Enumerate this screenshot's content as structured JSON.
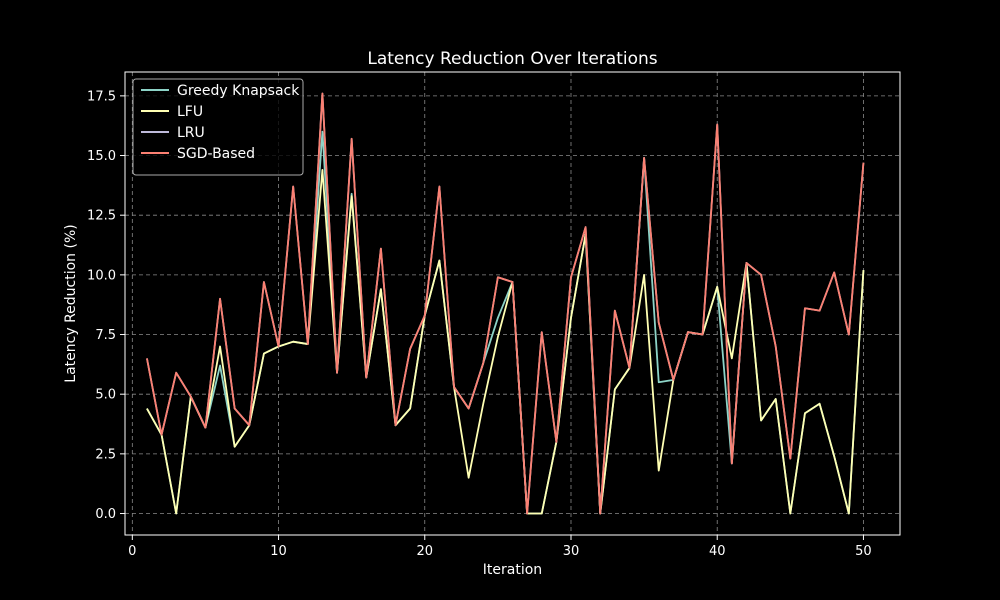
{
  "chart_data": {
    "type": "line",
    "title": "Latency Reduction Over Iterations",
    "xlabel": "Iteration",
    "ylabel": "Latency Reduction (%)",
    "xlim": [
      -0.5,
      52.5
    ],
    "ylim": [
      -0.9,
      18.5
    ],
    "xticks": [
      0,
      10,
      20,
      30,
      40,
      50
    ],
    "yticks": [
      0.0,
      2.5,
      5.0,
      7.5,
      10.0,
      12.5,
      15.0,
      17.5
    ],
    "xtick_labels": [
      "0",
      "10",
      "20",
      "30",
      "40",
      "50"
    ],
    "ytick_labels": [
      "0.0",
      "2.5",
      "5.0",
      "7.5",
      "10.0",
      "12.5",
      "15.0",
      "17.5"
    ],
    "grid": true,
    "legend_position": "top-left",
    "x": [
      1,
      2,
      3,
      4,
      5,
      6,
      7,
      8,
      9,
      10,
      11,
      12,
      13,
      14,
      15,
      16,
      17,
      18,
      19,
      20,
      21,
      22,
      23,
      24,
      25,
      26,
      27,
      28,
      29,
      30,
      31,
      32,
      33,
      34,
      35,
      36,
      37,
      38,
      39,
      40,
      41,
      42,
      43,
      44,
      45,
      46,
      47,
      48,
      49,
      50
    ],
    "series": [
      {
        "name": "Greedy Knapsack",
        "color": "#8dd3c7",
        "values": [
          4.4,
          3.3,
          0.0,
          4.9,
          3.6,
          6.2,
          2.8,
          3.7,
          6.7,
          7.0,
          7.2,
          7.1,
          16.0,
          5.9,
          13.4,
          5.7,
          9.4,
          3.7,
          4.4,
          8.3,
          10.6,
          5.3,
          4.4,
          6.3,
          8.2,
          9.7,
          0.0,
          0.0,
          3.0,
          8.2,
          11.7,
          0.0,
          5.2,
          6.1,
          14.9,
          5.5,
          5.6,
          7.6,
          7.5,
          9.5,
          2.1,
          10.5,
          3.9,
          4.8,
          0.0,
          4.2,
          4.6,
          2.4,
          0.0,
          10.2
        ]
      },
      {
        "name": "LFU",
        "color": "#ffffb3",
        "values": [
          4.4,
          3.3,
          0.0,
          4.9,
          3.6,
          7.0,
          2.8,
          3.7,
          6.7,
          7.0,
          7.2,
          7.1,
          14.4,
          5.9,
          13.3,
          5.7,
          9.4,
          3.7,
          4.4,
          8.3,
          10.6,
          5.3,
          1.5,
          4.6,
          7.4,
          9.7,
          0.0,
          0.0,
          3.0,
          8.2,
          11.7,
          0.0,
          5.2,
          6.1,
          10.0,
          1.8,
          5.6,
          7.6,
          7.5,
          9.5,
          6.5,
          10.5,
          3.9,
          4.8,
          0.0,
          4.2,
          4.6,
          2.4,
          0.0,
          10.2
        ]
      },
      {
        "name": "LRU",
        "color": "#bebada",
        "values": [
          6.5,
          3.3,
          5.9,
          4.9,
          3.6,
          9.0,
          4.4,
          3.7,
          9.7,
          7.0,
          13.7,
          7.1,
          17.6,
          5.9,
          15.7,
          5.7,
          11.1,
          3.7,
          6.9,
          8.3,
          13.7,
          5.3,
          4.4,
          6.3,
          9.9,
          9.7,
          0.0,
          7.6,
          3.0,
          9.9,
          12.0,
          0.0,
          8.5,
          6.1,
          14.9,
          8.0,
          5.6,
          7.6,
          7.5,
          16.3,
          2.1,
          10.5,
          10.0,
          7.0,
          2.3,
          8.6,
          8.5,
          10.1,
          7.5,
          14.7
        ]
      },
      {
        "name": "SGD-Based",
        "color": "#fb8072",
        "values": [
          6.5,
          3.3,
          5.9,
          4.9,
          3.6,
          9.0,
          4.4,
          3.7,
          9.7,
          7.0,
          13.7,
          7.1,
          17.6,
          5.9,
          15.7,
          5.7,
          11.1,
          3.7,
          6.9,
          8.3,
          13.7,
          5.3,
          4.4,
          6.3,
          9.9,
          9.7,
          0.0,
          7.6,
          3.0,
          9.9,
          12.0,
          0.0,
          8.5,
          6.1,
          14.9,
          8.0,
          5.6,
          7.6,
          7.5,
          16.3,
          2.1,
          10.5,
          10.0,
          7.0,
          2.3,
          8.6,
          8.5,
          10.1,
          7.5,
          14.7
        ]
      }
    ],
    "colors": {
      "background": "#000000",
      "axes": "#ffffff",
      "grid": "#8a8a8a",
      "legend_border": "#aaaaaa"
    }
  }
}
